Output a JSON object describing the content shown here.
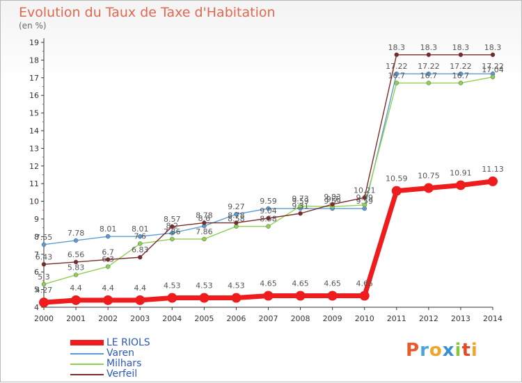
{
  "title": "Evolution du Taux de Taxe d'Habitation",
  "subtitle": "(en %)",
  "logo": {
    "letters": [
      "P",
      "r",
      "o",
      "x",
      "i",
      "t",
      "i"
    ],
    "colors": [
      "#e95a2b",
      "#4ea3d8",
      "#f0a52a",
      "#3a8fd1",
      "#8cc63f",
      "#e24b2a",
      "#f0a52a"
    ]
  },
  "chart_data": {
    "type": "line",
    "categories": [
      "2000",
      "2001",
      "2002",
      "2003",
      "2004",
      "2005",
      "2006",
      "2007",
      "2008",
      "2009",
      "2010",
      "2011",
      "2012",
      "2013",
      "2014"
    ],
    "ylim": [
      4,
      19
    ],
    "yticks": [
      "4",
      "5",
      "6",
      "7",
      "8",
      "9",
      "10",
      "11",
      "12",
      "13",
      "14",
      "15",
      "16",
      "17",
      "18",
      "19"
    ],
    "grid": false,
    "legend_position": "bottom-left",
    "series": [
      {
        "name": "Varen",
        "color": "#5b9bd5",
        "values": [
          7.55,
          7.78,
          8.01,
          8.01,
          8.2,
          8.6,
          9.27,
          9.59,
          9.59,
          9.59,
          9.59,
          17.22,
          17.22,
          17.22,
          17.22
        ],
        "labels": [
          "7.55",
          "7.78",
          "8.01",
          "8.01",
          "8.2",
          "8.6",
          "9.27",
          "9.59",
          "9.59",
          "9.59",
          "9.59",
          "17.22",
          "17.22",
          "17.22",
          "17.22"
        ]
      },
      {
        "name": "Milhars",
        "color": "#8ed150",
        "values": [
          5.3,
          5.83,
          6.3,
          7.6,
          7.86,
          7.86,
          8.58,
          8.58,
          9.73,
          9.7,
          9.79,
          16.7,
          16.7,
          16.7,
          17.04
        ],
        "labels": [
          "5.3",
          "5.83",
          "6.3",
          "7.6",
          "7.86",
          "7.86",
          "8.58",
          "8.58",
          "9.73",
          "9.7",
          "9.79",
          "16.7",
          "16.7",
          "16.7",
          "17.04"
        ]
      },
      {
        "name": "Verfeil",
        "color": "#7b2a2a",
        "values": [
          6.43,
          6.56,
          6.7,
          6.83,
          8.57,
          8.78,
          8.78,
          9.04,
          9.31,
          9.83,
          10.21,
          18.3,
          18.3,
          18.3,
          18.3
        ],
        "labels": [
          "6.43",
          "6.56",
          "6.7",
          "6.83",
          "8.57",
          "8.78",
          "8.78",
          "9.04",
          "9.31",
          "9.83",
          "10.21",
          "18.3",
          "18.3",
          "18.3",
          "18.3"
        ]
      },
      {
        "name": "LE RIOLS",
        "color": "#ee1c1c",
        "values": [
          4.27,
          4.4,
          4.4,
          4.4,
          4.53,
          4.53,
          4.53,
          4.65,
          4.65,
          4.65,
          4.65,
          10.59,
          10.75,
          10.91,
          11.13
        ],
        "labels": [
          "4.27",
          "4.4",
          "4.4",
          "4.4",
          "4.53",
          "4.53",
          "4.53",
          "4.65",
          "4.65",
          "4.65",
          "4.65",
          "10.59",
          "10.75",
          "10.91",
          "11.13"
        ]
      }
    ]
  }
}
